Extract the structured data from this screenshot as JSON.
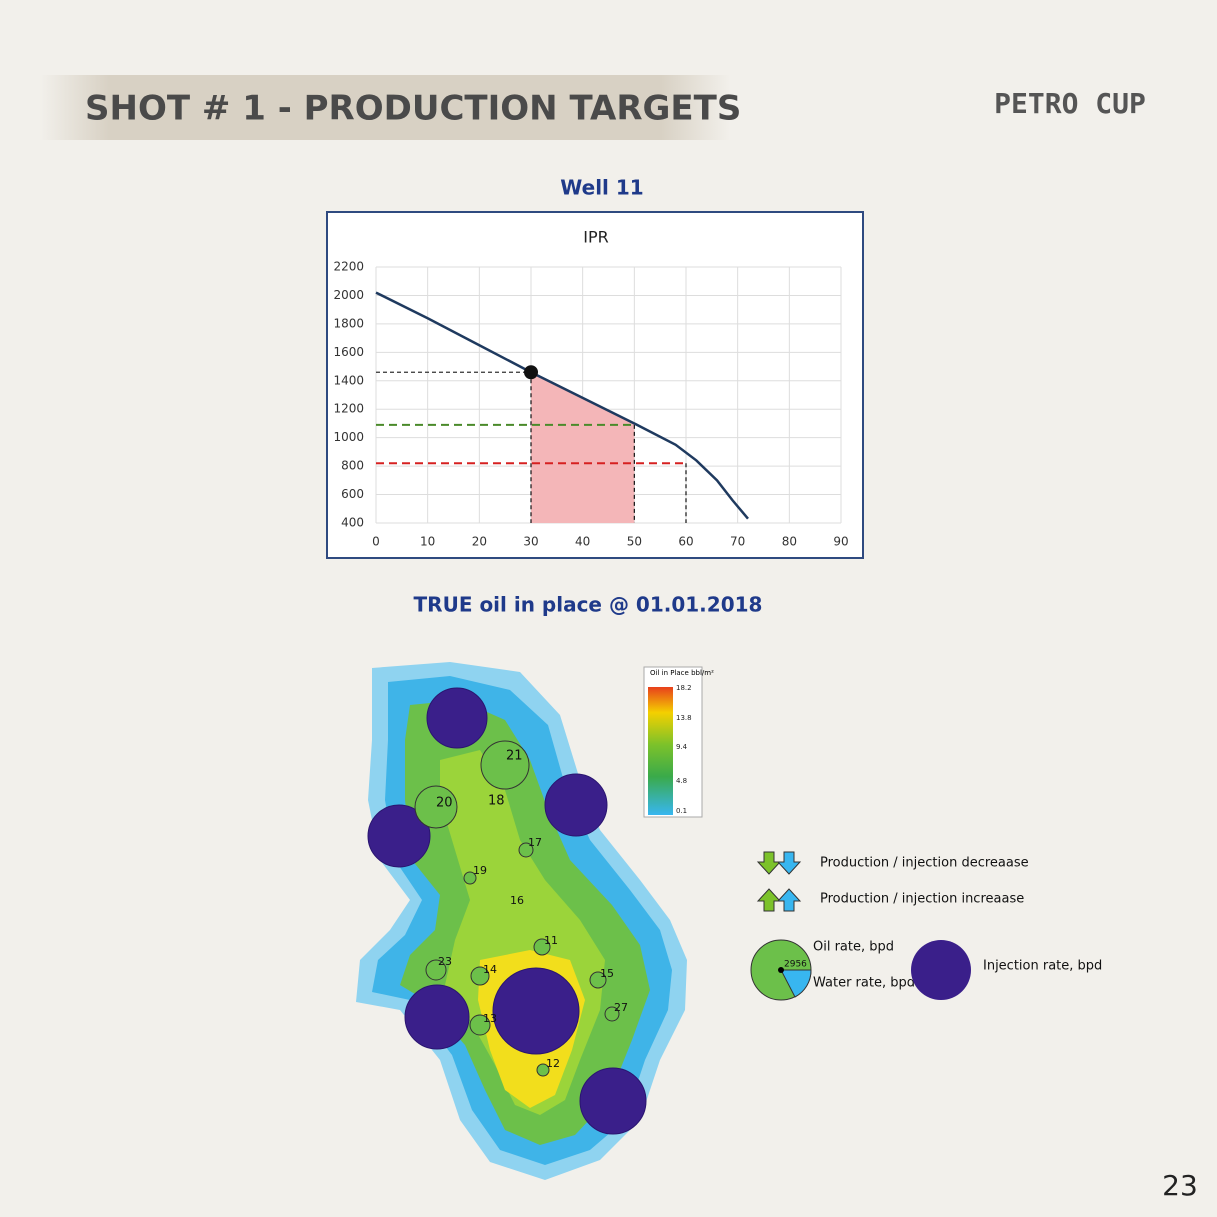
{
  "header": {
    "title": "SHOT # 1 - PRODUCTION TARGETS",
    "logo": "PETRO CUP"
  },
  "chart_data": {
    "type": "line",
    "heading": "Well 11",
    "title": "IPR",
    "x": [
      0,
      10,
      20,
      30,
      40,
      50,
      58,
      62,
      66,
      69,
      72
    ],
    "series": [
      {
        "name": "IPR",
        "color": "#1f3a5f",
        "values": [
          2020,
          1840,
          1650,
          1460,
          1280,
          1100,
          950,
          840,
          700,
          560,
          430
        ]
      }
    ],
    "xlim": [
      0,
      90
    ],
    "xticks": [
      0,
      10,
      20,
      30,
      40,
      50,
      60,
      70,
      80,
      90
    ],
    "ylim": [
      400,
      2200
    ],
    "yticks": [
      400,
      600,
      800,
      1000,
      1200,
      1400,
      1600,
      1800,
      2000,
      2200
    ],
    "grid": true,
    "operating_point": {
      "x": 30,
      "y": 1460
    },
    "guides": [
      {
        "x": 30,
        "y": 1460,
        "color": "#333333"
      },
      {
        "x": 50,
        "y": 1090,
        "color": "#4a8a2a"
      },
      {
        "x": 60,
        "y": 820,
        "color": "#d62020"
      }
    ],
    "shaded_range": [
      30,
      50
    ],
    "shade_color": "#f4b6b8"
  },
  "map": {
    "title": "TRUE oil in place @ 01.01.2018",
    "colorbar": {
      "title": "Oil in Place bbl/m²",
      "ticks": [
        "18.2",
        "13.8",
        "9.4",
        "4.8",
        "0.1"
      ]
    },
    "wells": [
      "21",
      "20",
      "18",
      "17",
      "19",
      "16",
      "11",
      "23",
      "14",
      "15",
      "13",
      "27",
      "12"
    ]
  },
  "legend": {
    "decrease": "Production / injection decreaase",
    "increase": "Production / injection increaase",
    "oil": "Oil rate, bpd",
    "water": "Water rate, bpd",
    "sample": "2956",
    "injection": "Injection rate, bpd"
  },
  "page_number": "23"
}
